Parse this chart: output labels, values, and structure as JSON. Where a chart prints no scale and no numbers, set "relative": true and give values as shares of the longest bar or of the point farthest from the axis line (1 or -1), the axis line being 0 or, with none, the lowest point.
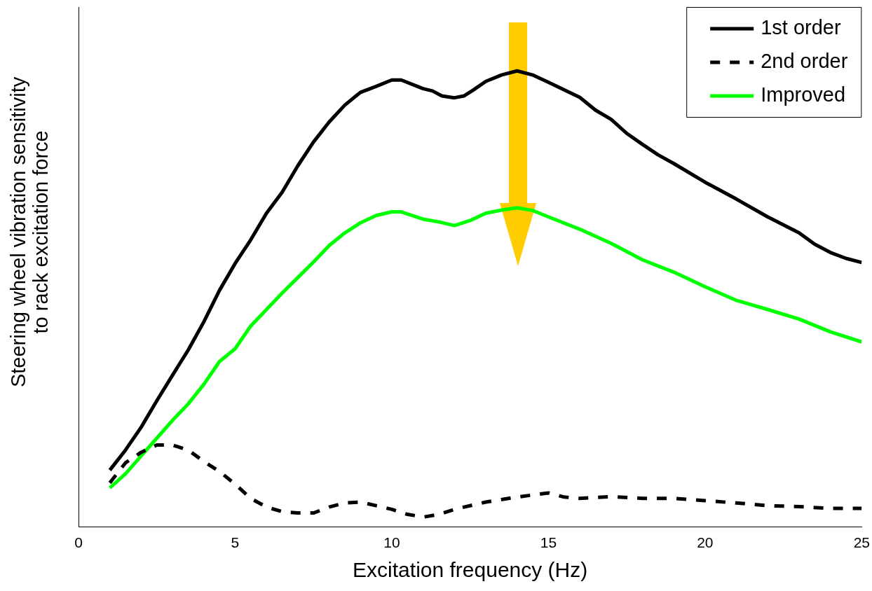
{
  "chart_data": {
    "type": "line",
    "relative": true,
    "xlabel": "Excitation frequency (Hz)",
    "ylabel": "Steering wheel vibration sensitivity to rack excitation force",
    "xlim": [
      0,
      25
    ],
    "xticks": [
      0,
      5,
      10,
      15,
      20,
      25
    ],
    "grid": false,
    "legend": "top right",
    "marker": "none",
    "series": [
      {
        "name": "1st order",
        "color": "#000000",
        "line_style": "solid",
        "x": [
          1,
          1.5,
          2,
          2.5,
          3,
          3.5,
          4,
          4.5,
          5,
          5.5,
          6,
          6.5,
          7,
          7.5,
          8,
          8.5,
          9,
          9.5,
          10,
          10.3,
          11,
          11.3,
          11.6,
          12,
          12.3,
          12.6,
          13,
          13.5,
          14,
          14.5,
          15,
          16,
          16.5,
          17,
          17.5,
          18,
          18.5,
          19,
          20,
          21,
          22,
          23,
          23.5,
          24,
          24.5,
          25
        ],
        "values": [
          0.125,
          0.169,
          0.219,
          0.277,
          0.333,
          0.388,
          0.45,
          0.519,
          0.578,
          0.63,
          0.688,
          0.734,
          0.792,
          0.844,
          0.888,
          0.925,
          0.953,
          0.966,
          0.98,
          0.98,
          0.961,
          0.956,
          0.945,
          0.941,
          0.945,
          0.958,
          0.977,
          0.991,
          1,
          0.991,
          0.975,
          0.942,
          0.914,
          0.894,
          0.863,
          0.839,
          0.816,
          0.797,
          0.756,
          0.719,
          0.68,
          0.645,
          0.62,
          0.602,
          0.589,
          0.58
        ]
      },
      {
        "name": "2nd order",
        "color": "#000000",
        "line_style": "dashed",
        "x": [
          1,
          1.5,
          2,
          2.5,
          3,
          3.5,
          4,
          4.5,
          5,
          5.5,
          6,
          6.5,
          7,
          7.5,
          8,
          8.5,
          9,
          9.5,
          10,
          10.5,
          11,
          11.5,
          12,
          13,
          14,
          15,
          15.5,
          16,
          17,
          18,
          19,
          20,
          21,
          22,
          23,
          24,
          25
        ],
        "values": [
          0.097,
          0.141,
          0.164,
          0.18,
          0.18,
          0.169,
          0.144,
          0.122,
          0.094,
          0.063,
          0.044,
          0.034,
          0.031,
          0.031,
          0.044,
          0.053,
          0.055,
          0.047,
          0.039,
          0.028,
          0.022,
          0.028,
          0.039,
          0.055,
          0.066,
          0.075,
          0.066,
          0.063,
          0.067,
          0.063,
          0.063,
          0.058,
          0.053,
          0.047,
          0.045,
          0.041,
          0.041
        ]
      },
      {
        "name": "Improved",
        "color": "#00ff00",
        "line_style": "solid",
        "x": [
          1,
          1.5,
          2,
          2.5,
          3,
          3.5,
          4,
          4.5,
          5,
          5.5,
          6,
          6.5,
          7,
          7.5,
          8,
          8.5,
          9,
          9.5,
          10,
          10.3,
          11,
          11.5,
          12,
          12.5,
          13,
          13.5,
          14,
          14.5,
          15,
          16,
          17,
          18,
          19,
          20,
          21,
          22,
          23,
          24,
          25
        ],
        "values": [
          0.086,
          0.117,
          0.156,
          0.195,
          0.234,
          0.27,
          0.313,
          0.363,
          0.391,
          0.441,
          0.477,
          0.513,
          0.547,
          0.581,
          0.617,
          0.645,
          0.667,
          0.683,
          0.691,
          0.691,
          0.675,
          0.669,
          0.661,
          0.672,
          0.688,
          0.695,
          0.7,
          0.694,
          0.68,
          0.653,
          0.622,
          0.586,
          0.559,
          0.527,
          0.497,
          0.477,
          0.456,
          0.428,
          0.406
        ]
      }
    ]
  }
}
